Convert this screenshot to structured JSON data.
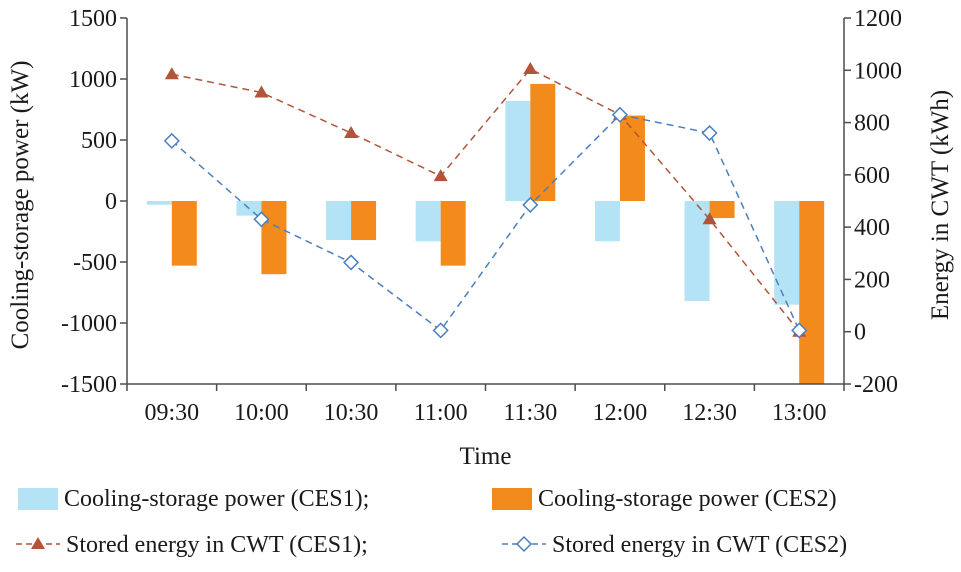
{
  "colors": {
    "ces1_bar": "#b4e3f5",
    "ces2_bar": "#f28a1c",
    "ces1_line": "#b0553a",
    "ces2_line": "#4a7fbf",
    "axis": "#4d4d4d"
  },
  "chart_data": {
    "type": "bar",
    "categories": [
      "09:30",
      "10:00",
      "10:30",
      "11:00",
      "11:30",
      "12:00",
      "12:30",
      "13:00"
    ],
    "xlabel": "Time",
    "ylabel": "Cooling-storage power (kW)",
    "y2label": "Energy in CWT (kWh)",
    "ylim": [
      -1500,
      1500
    ],
    "y2lim": [
      -200,
      1200
    ],
    "yticks": [
      "1500",
      "1000",
      "500",
      "0",
      "-500",
      "-1000",
      "-1500"
    ],
    "y2ticks": [
      "1200",
      "1000",
      "800",
      "600",
      "400",
      "200",
      "0",
      "-200"
    ],
    "grid": false,
    "legend_position": "bottom",
    "series": [
      {
        "name": "Cooling-storage power (CES1);",
        "type": "bar",
        "axis": "left",
        "values": [
          -30,
          -120,
          -320,
          -330,
          820,
          -330,
          -820,
          -850
        ]
      },
      {
        "name": "Cooling-storage power (CES2)",
        "type": "bar",
        "axis": "left",
        "values": [
          -530,
          -600,
          -320,
          -530,
          960,
          700,
          -140,
          -1500
        ]
      },
      {
        "name": "Stored energy in CWT (CES1);",
        "type": "line",
        "axis": "right",
        "marker": "triangle",
        "values": [
          985,
          915,
          760,
          595,
          1005,
          830,
          430,
          0
        ]
      },
      {
        "name": "Stored energy in CWT (CES2)",
        "type": "line",
        "axis": "right",
        "marker": "diamond",
        "values": [
          730,
          430,
          265,
          5,
          485,
          830,
          760,
          5
        ]
      }
    ]
  }
}
